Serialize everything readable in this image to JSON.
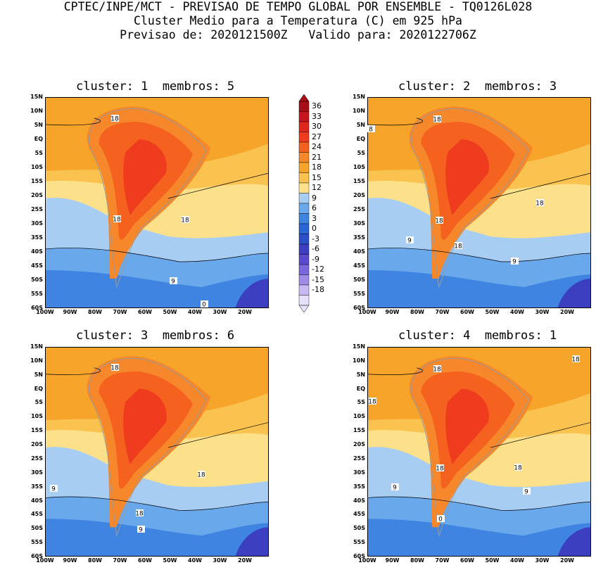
{
  "header": {
    "line1": "CPTEC/INPE/MCT - PREVISAO DE TEMPO GLOBAL POR ENSEMBLE - TQ0126L028",
    "line2": "Cluster Medio para a Temperatura (C) em 925 hPa",
    "line3": "Previsao de: 2020121500Z   Valido para: 2020122706Z"
  },
  "panels": [
    {
      "title": "cluster: 1  membros: 5",
      "contour_labels": [
        "18",
        "18",
        "18",
        "9",
        "0"
      ]
    },
    {
      "title": "cluster: 2  membros: 3",
      "contour_labels": [
        "18",
        "8",
        "18",
        "18",
        "9",
        "18",
        "9"
      ]
    },
    {
      "title": "cluster: 3  membros: 6",
      "contour_labels": [
        "18",
        "18",
        "9",
        "18",
        "9"
      ]
    },
    {
      "title": "cluster: 4  membros: 1",
      "contour_labels": [
        "18",
        "18",
        "18",
        "18",
        "18",
        "9",
        "9",
        "0"
      ]
    }
  ],
  "axes": {
    "lat_ticks": [
      "15N",
      "10N",
      "5N",
      "EQ",
      "5S",
      "10S",
      "15S",
      "20S",
      "25S",
      "30S",
      "35S",
      "40S",
      "45S",
      "50S",
      "55S",
      "60S"
    ],
    "lon_ticks": [
      "100W",
      "90W",
      "80W",
      "70W",
      "60W",
      "50W",
      "40W",
      "30W",
      "20W"
    ]
  },
  "colorbar": {
    "labels": [
      "36",
      "33",
      "30",
      "27",
      "24",
      "21",
      "18",
      "15",
      "12",
      "9",
      "6",
      "3",
      "0",
      "-3",
      "-6",
      "-9",
      "-12",
      "-15",
      "-18"
    ],
    "colors": [
      "#a50f15",
      "#c8141e",
      "#e0271c",
      "#ef3c1f",
      "#f5621f",
      "#f6872a",
      "#f6a42a",
      "#fac24f",
      "#fde08a",
      "#a8cdf3",
      "#6aa8ec",
      "#3f84e0",
      "#2a65d6",
      "#2a4fc9",
      "#3b3fc0",
      "#5a4ad0",
      "#7a66dd",
      "#a08ae8",
      "#c8b9f2",
      "#e6e0fa"
    ]
  }
}
